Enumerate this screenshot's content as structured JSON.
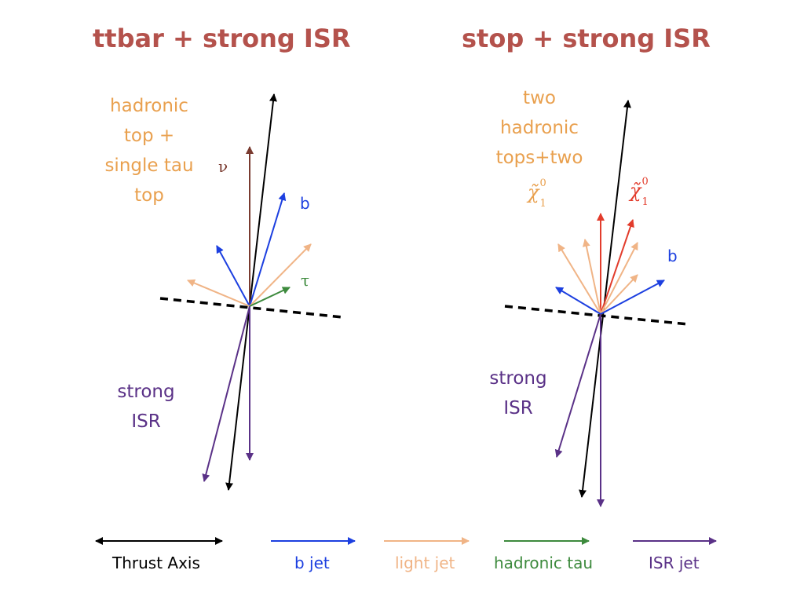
{
  "panels": [
    {
      "title": "ttbar + strong ISR",
      "description": "hadronic\ntop +\nsingle tau\ntop",
      "isr_label": "strong\nISR",
      "particle_labels": {
        "nu": "ν",
        "b": "b",
        "tau": "τ"
      }
    },
    {
      "title": "stop + strong ISR",
      "description": "two\nhadronic\ntops+two",
      "isr_label": "strong\nISR",
      "particle_labels": {
        "b": "b",
        "chi_symbol": "χ̃",
        "chi_sup": "0",
        "chi_sub": "1"
      }
    }
  ],
  "legend": [
    {
      "label": "Thrust Axis",
      "color": "#000000",
      "style": "double-arrow"
    },
    {
      "label": "b jet",
      "color": "#1c3fe0",
      "style": "arrow"
    },
    {
      "label": "light jet",
      "color": "#f0b486",
      "style": "arrow"
    },
    {
      "label": "hadronic tau",
      "color": "#3d8a3d",
      "style": "arrow"
    },
    {
      "label": "ISR jet",
      "color": "#5a3187",
      "style": "arrow"
    }
  ],
  "colors": {
    "title": "#b4524c",
    "neutrino": "#7a3b30",
    "neutralino": "#e23c2c",
    "description": "#e9a04e"
  }
}
